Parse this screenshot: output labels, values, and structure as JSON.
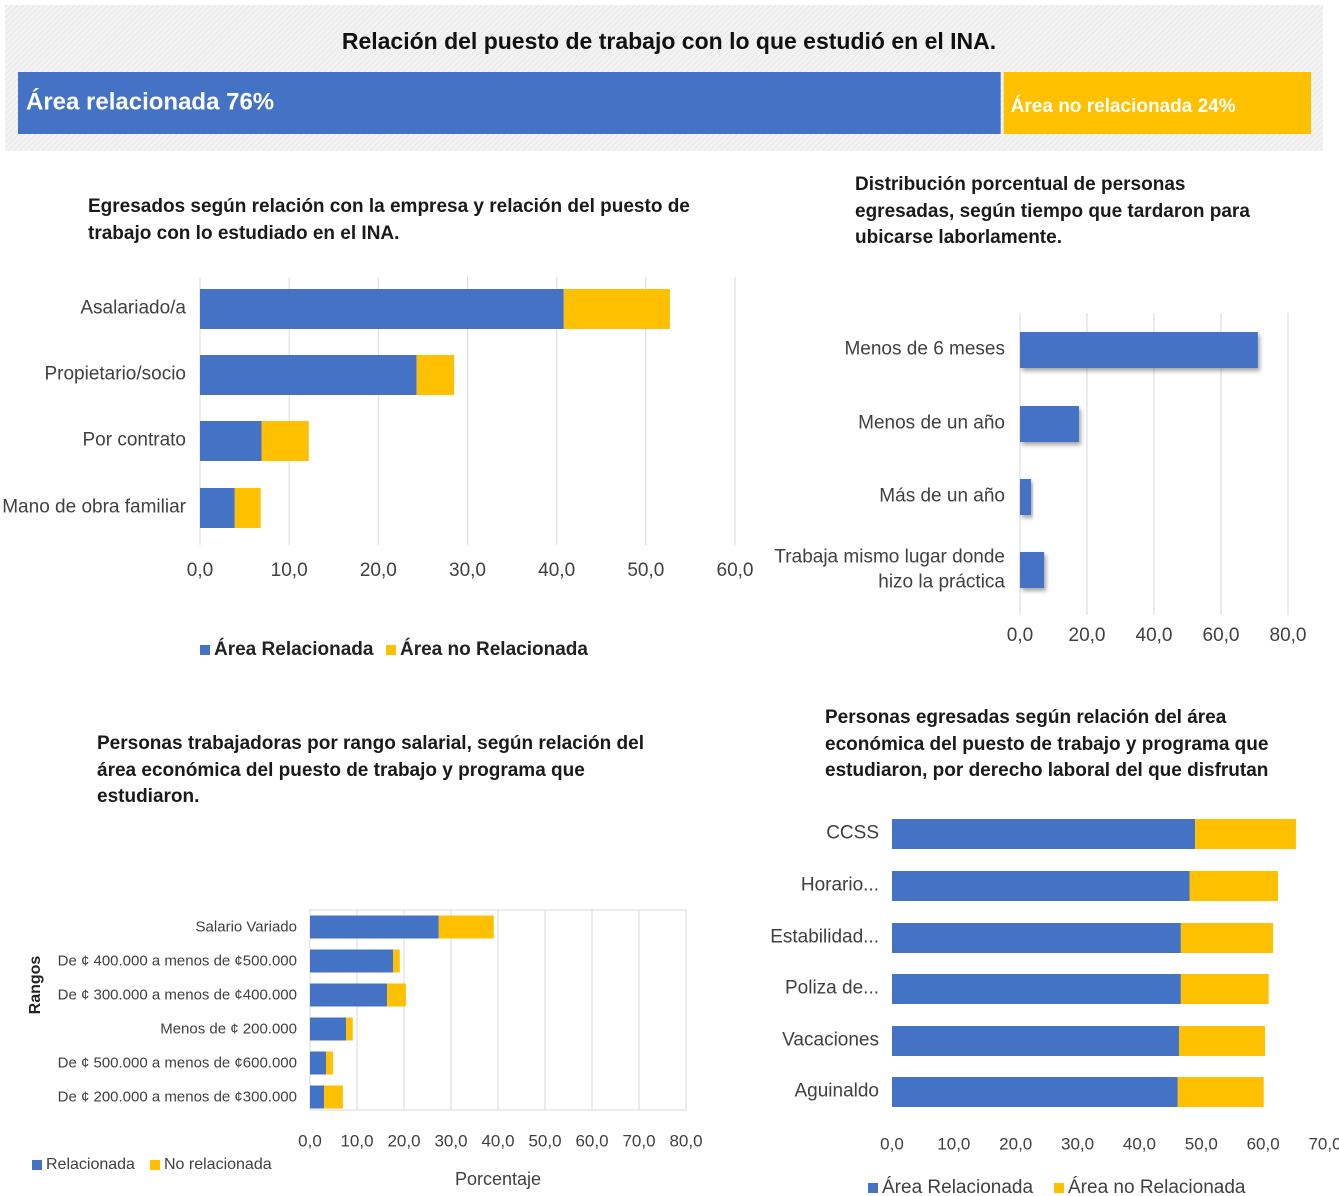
{
  "chart_data": [
    {
      "type": "share_bar",
      "title": "Relación del puesto de trabajo con lo que estudió en el INA.",
      "values": [
        76,
        24
      ],
      "value_labels": [
        "Área relacionada 76%",
        "Área no relacionada 24%"
      ],
      "colors": [
        "#4472c4",
        "#ffc000"
      ]
    },
    {
      "type": "stacked_hbar",
      "title": "Egresados según relación con la empresa y relación del puesto de trabajo con lo estudiado en el INA.",
      "categories": [
        "Asalariado/a",
        "Propietario/socio",
        "Por contrato",
        "Mano de obra familiar"
      ],
      "series": [
        {
          "name": "Área Relacionada",
          "color": "#4472c4",
          "values": [
            40.8,
            24.3,
            6.9,
            3.9
          ]
        },
        {
          "name": "Área no  Relacionada",
          "color": "#ffc000",
          "values": [
            11.9,
            4.2,
            5.3,
            2.9
          ]
        }
      ],
      "xlim": [
        0,
        60
      ],
      "xticks": [
        {
          "value": 0,
          "label": "0,0"
        },
        {
          "value": 10,
          "label": "10,0"
        },
        {
          "value": 20,
          "label": "20,0"
        },
        {
          "value": 30,
          "label": "30,0"
        },
        {
          "value": 40,
          "label": "40,0"
        },
        {
          "value": 50,
          "label": "50,0"
        },
        {
          "value": 60,
          "label": "60,0"
        }
      ],
      "grid": true,
      "legend": "bottom"
    },
    {
      "type": "hbar",
      "title": "Distribución porcentual de personas egresadas, según tiempo que tardaron para ubicarse laborlamente.",
      "categories": [
        "Menos de 6 meses",
        "Menos de un año",
        "Más de un año",
        "Trabaja mismo lugar donde hizo la práctica"
      ],
      "values": [
        71.0,
        17.6,
        3.3,
        7.2
      ],
      "color": "#4472c4",
      "xlim": [
        0,
        80
      ],
      "xticks": [
        {
          "value": 0,
          "label": "0,0"
        },
        {
          "value": 20,
          "label": "20,0"
        },
        {
          "value": 40,
          "label": "40,0"
        },
        {
          "value": 60,
          "label": "60,0"
        },
        {
          "value": 80,
          "label": "80,0"
        }
      ],
      "grid": true
    },
    {
      "type": "stacked_hbar",
      "title": "Personas trabajadoras por rango salarial, según relación del área económica del puesto de trabajo y programa que estudiaron.",
      "categories": [
        "Salario Variado",
        "De ¢ 400.000 a menos de ¢500.000",
        "De ¢ 300.000 a menos de ¢400.000",
        "Menos de ¢ 200.000",
        "De ¢ 500.000 a menos de ¢600.000",
        "De ¢ 200.000 a menos de ¢300.000"
      ],
      "series": [
        {
          "name": "Relacionada",
          "color": "#4472c4",
          "values": [
            27.4,
            17.7,
            16.4,
            7.7,
            3.4,
            3.0
          ]
        },
        {
          "name": "No relacionada",
          "color": "#ffc000",
          "values": [
            11.7,
            1.4,
            4.0,
            1.4,
            1.5,
            4.0
          ]
        }
      ],
      "xlim": [
        0,
        80
      ],
      "xticks": [
        {
          "value": 0,
          "label": "0,0"
        },
        {
          "value": 10,
          "label": "10,0"
        },
        {
          "value": 20,
          "label": "20,0"
        },
        {
          "value": 30,
          "label": "30,0"
        },
        {
          "value": 40,
          "label": "40,0"
        },
        {
          "value": 50,
          "label": "50,0"
        },
        {
          "value": 60,
          "label": "60,0"
        },
        {
          "value": 70,
          "label": "70,0"
        },
        {
          "value": 80,
          "label": "80,0"
        }
      ],
      "xlabel": "Porcentaje",
      "ylabel": "Rangos",
      "grid": true,
      "legend": "bottom-left"
    },
    {
      "type": "stacked_hbar",
      "title": "Personas egresadas según relación del área económica del puesto de trabajo y programa  que estudiaron, por derecho laboral del que disfrutan",
      "categories": [
        "CCSS",
        "Horario...",
        "Estabilidad...",
        "Poliza de...",
        "Vacaciones",
        "Aguinaldo"
      ],
      "series": [
        {
          "name": "Área Relacionada",
          "color": "#4472c4",
          "values": [
            49.0,
            48.1,
            46.7,
            46.7,
            46.4,
            46.2
          ]
        },
        {
          "name": "Área no Relacionada",
          "color": "#ffc000",
          "values": [
            16.3,
            14.3,
            14.9,
            14.2,
            13.9,
            13.9
          ]
        }
      ],
      "xlim": [
        0,
        70
      ],
      "xticks": [
        {
          "value": 0,
          "label": "0,0"
        },
        {
          "value": 10,
          "label": "10,0"
        },
        {
          "value": 20,
          "label": "20,0"
        },
        {
          "value": 30,
          "label": "30,0"
        },
        {
          "value": 40,
          "label": "40,0"
        },
        {
          "value": 50,
          "label": "50,0"
        },
        {
          "value": 60,
          "label": "60,0"
        },
        {
          "value": 70,
          "label": "70,0"
        }
      ],
      "grid": false,
      "legend": "bottom"
    }
  ]
}
